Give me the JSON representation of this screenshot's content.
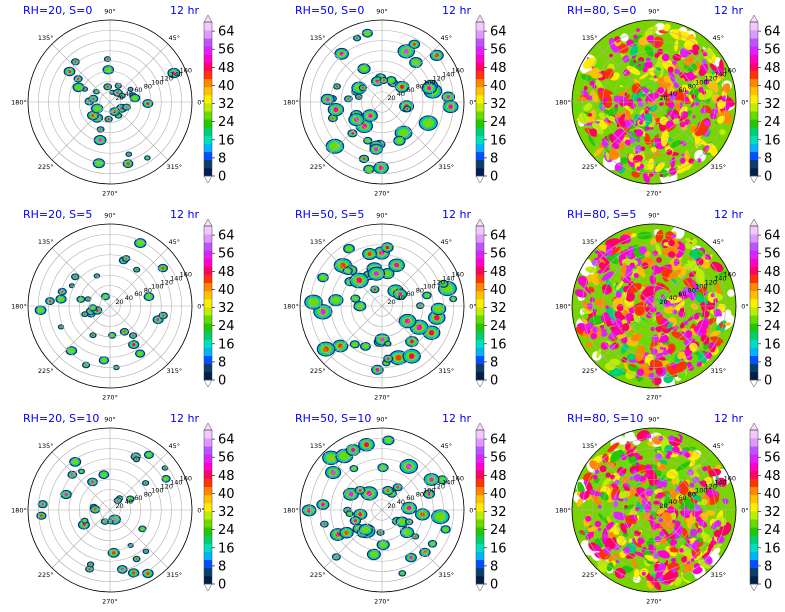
{
  "chart_data": {
    "type": "polar-filled-contour",
    "description_rows": [
      "S=0",
      "S=5",
      "S=10"
    ],
    "colorbar": {
      "ticks": [
        "0",
        "8",
        "16",
        "24",
        "32",
        "40",
        "48",
        "56",
        "64"
      ],
      "range": [
        0,
        68
      ],
      "extend": "both",
      "colors": [
        "#00204a",
        "#0a3d6a",
        "#0050ff",
        "#00b4ff",
        "#00e0c0",
        "#00d070",
        "#22c800",
        "#66dd00",
        "#bbee00",
        "#ffee00",
        "#ffc000",
        "#ff8800",
        "#ff3300",
        "#ff0066",
        "#ff00cc",
        "#dd22ff",
        "#bb55ff",
        "#dd99ff",
        "#f3c8ff"
      ]
    },
    "angle_labels": [
      "0°",
      "45°",
      "90°",
      "135°",
      "180°",
      "225°",
      "270°",
      "315°"
    ],
    "radial_tick_labels": [
      "20",
      "40",
      "60",
      "80",
      "100",
      "120",
      "140",
      "160"
    ],
    "radial_max": 160,
    "panels": [
      {
        "title": "RH=20, S=0",
        "time": "12 hr",
        "rh": 20,
        "s": 0,
        "coverage": 0.07
      },
      {
        "title": "RH=50, S=0",
        "time": "12 hr",
        "rh": 50,
        "s": 0,
        "coverage": 0.24
      },
      {
        "title": "RH=80, S=0",
        "time": "12 hr",
        "rh": 80,
        "s": 0,
        "coverage": 0.96
      },
      {
        "title": "RH=20, S=5",
        "time": "12 hr",
        "rh": 20,
        "s": 5,
        "coverage": 0.07
      },
      {
        "title": "RH=50, S=5",
        "time": "12 hr",
        "rh": 50,
        "s": 5,
        "coverage": 0.24
      },
      {
        "title": "RH=80, S=5",
        "time": "12 hr",
        "rh": 80,
        "s": 5,
        "coverage": 0.95
      },
      {
        "title": "RH=20, S=10",
        "time": "12 hr",
        "rh": 20,
        "s": 10,
        "coverage": 0.06
      },
      {
        "title": "RH=50, S=10",
        "time": "12 hr",
        "rh": 50,
        "s": 10,
        "coverage": 0.24
      },
      {
        "title": "RH=80, S=10",
        "time": "12 hr",
        "rh": 80,
        "s": 10,
        "coverage": 0.94
      }
    ]
  }
}
